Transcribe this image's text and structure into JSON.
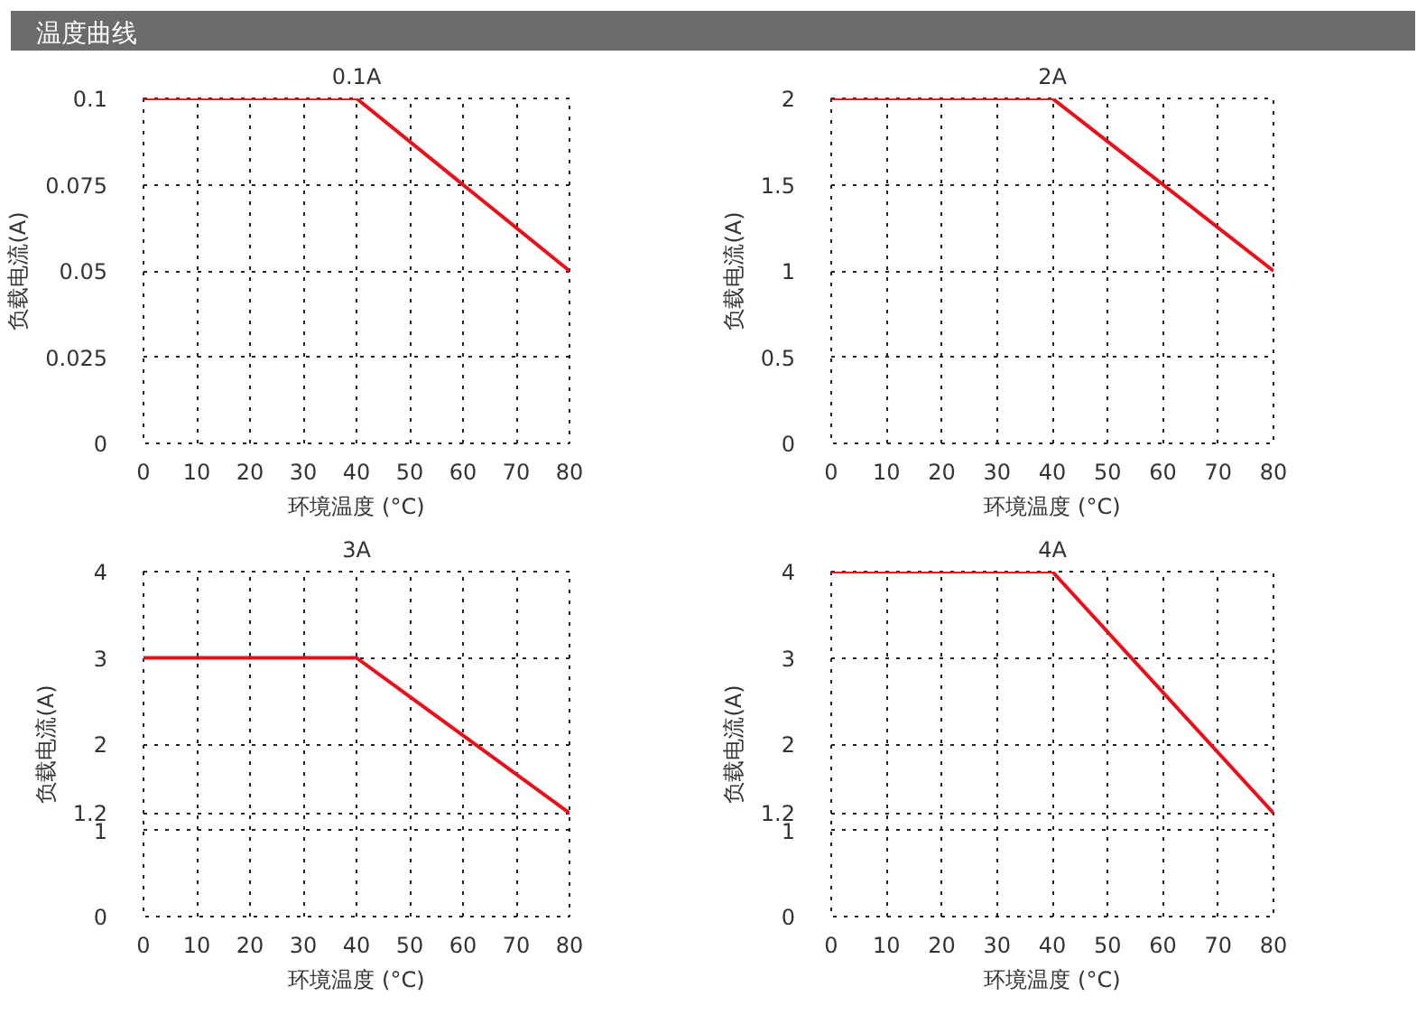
{
  "chart_data": [
    {
      "type": "line",
      "annotations": [
        "温度曲线"
      ],
      "title": "0.1A",
      "xlabel": "环境温度 (°C)",
      "ylabel": "负载电流(A)",
      "x": [
        0,
        40,
        80
      ],
      "series": [
        {
          "color": "#e8101a",
          "values": [
            0.1,
            0.1,
            0.05
          ]
        }
      ],
      "xlim": [
        0,
        80
      ],
      "xticks": [
        0,
        10,
        20,
        30,
        40,
        50,
        60,
        70,
        80
      ],
      "ylim": [
        0,
        0.1
      ],
      "yticks": [
        0,
        0.025,
        0.05,
        0.075,
        0.1
      ],
      "grid": true,
      "marker": "none",
      "line_style": "solid"
    },
    {
      "type": "line",
      "title": "2A",
      "xlabel": "环境温度 (°C)",
      "ylabel": "负载电流(A)",
      "x": [
        0,
        40,
        80
      ],
      "series": [
        {
          "color": "#e8101a",
          "values": [
            2,
            2,
            1
          ]
        }
      ],
      "xlim": [
        0,
        80
      ],
      "xticks": [
        0,
        10,
        20,
        30,
        40,
        50,
        60,
        70,
        80
      ],
      "ylim": [
        0,
        2
      ],
      "yticks": [
        0,
        0.5,
        1,
        1.5,
        2
      ],
      "grid": true,
      "marker": "none",
      "line_style": "solid"
    },
    {
      "type": "line",
      "title": "3A",
      "xlabel": "环境温度 (°C)",
      "ylabel": "负载电流(A)",
      "x": [
        0,
        40,
        80
      ],
      "series": [
        {
          "color": "#e8101a",
          "values": [
            3,
            3,
            1.2
          ]
        }
      ],
      "xlim": [
        0,
        80
      ],
      "xticks": [
        0,
        10,
        20,
        30,
        40,
        50,
        60,
        70,
        80
      ],
      "ylim": [
        0,
        4
      ],
      "yticks": [
        0,
        1,
        1.2,
        2,
        3,
        4
      ],
      "grid": true,
      "marker": "none",
      "line_style": "solid"
    },
    {
      "type": "line",
      "title": "4A",
      "xlabel": "环境温度 (°C)",
      "ylabel": "负载电流(A)",
      "x": [
        0,
        40,
        80
      ],
      "series": [
        {
          "color": "#e8101a",
          "values": [
            4,
            4,
            1.2
          ]
        }
      ],
      "xlim": [
        0,
        80
      ],
      "xticks": [
        0,
        10,
        20,
        30,
        40,
        50,
        60,
        70,
        80
      ],
      "ylim": [
        0,
        4
      ],
      "yticks": [
        0,
        1,
        1.2,
        2,
        3,
        4
      ],
      "grid": true,
      "marker": "none",
      "line_style": "solid"
    }
  ]
}
